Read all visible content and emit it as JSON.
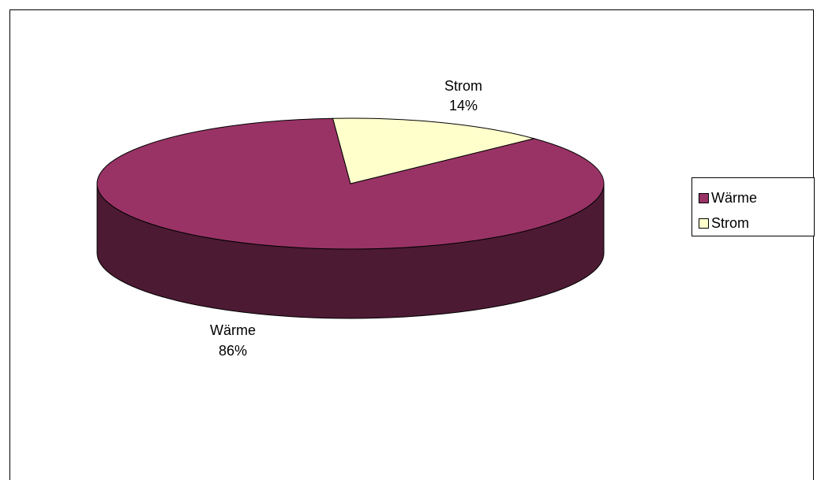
{
  "chart_data": {
    "type": "pie",
    "style": "3d",
    "title": "",
    "slices": [
      {
        "name": "Wärme",
        "value": 86,
        "label_name": "Wärme",
        "label_pct": "86%",
        "color": "#993366",
        "side_color": "#4d1a33"
      },
      {
        "name": "Strom",
        "value": 14,
        "label_name": "Strom",
        "label_pct": "14%",
        "color": "#ffffcc",
        "side_color": "#80805f"
      }
    ],
    "legend": {
      "placement": "right",
      "entries": [
        {
          "label": "Wärme",
          "color": "#993366"
        },
        {
          "label": "Strom",
          "color": "#ffffcc"
        }
      ]
    }
  }
}
